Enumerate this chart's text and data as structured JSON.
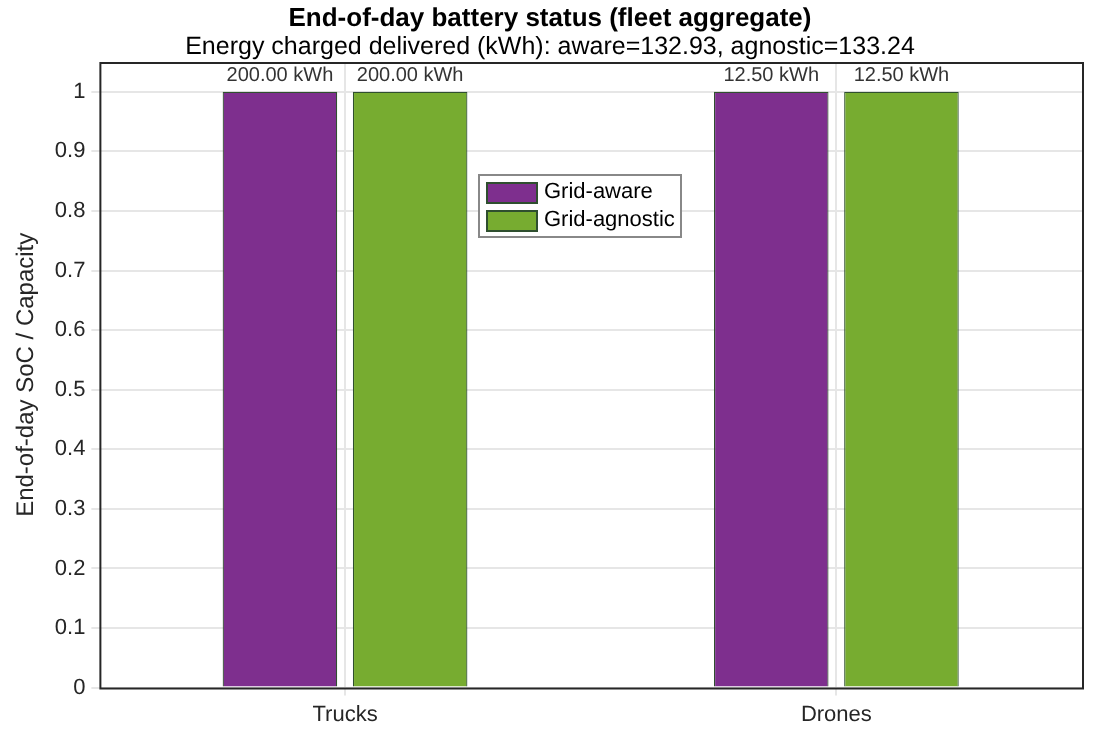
{
  "chart_data": {
    "type": "bar",
    "title": "End-of-day battery status (fleet aggregate)",
    "subtitle": "Energy charged delivered (kWh): aware=132.93, agnostic=133.24",
    "ylabel": "End-of-day SoC / Capacity",
    "categories": [
      "Trucks",
      "Drones"
    ],
    "series": [
      {
        "name": "Grid-aware",
        "color": "#7e2f8e",
        "values": [
          1,
          1
        ]
      },
      {
        "name": "Grid-agnostic",
        "color": "#77ac30",
        "values": [
          1,
          1
        ]
      }
    ],
    "annotations": [
      {
        "text": "200.00 kWh",
        "x": "Trucks",
        "y": 1
      },
      {
        "text": "200.00 kWh",
        "x": "Trucks",
        "y": 1
      },
      {
        "text": "12.50 kWh",
        "x": "Drones",
        "y": 1
      },
      {
        "text": "12.50 kWh",
        "x": "Drones",
        "y": 1
      }
    ],
    "ylim": [
      0,
      1.05
    ],
    "yticks": [
      0,
      0.1,
      0.2,
      0.3,
      0.4,
      0.5,
      0.6,
      0.7,
      0.8,
      0.9,
      1
    ],
    "grid": true,
    "legend": "top"
  }
}
